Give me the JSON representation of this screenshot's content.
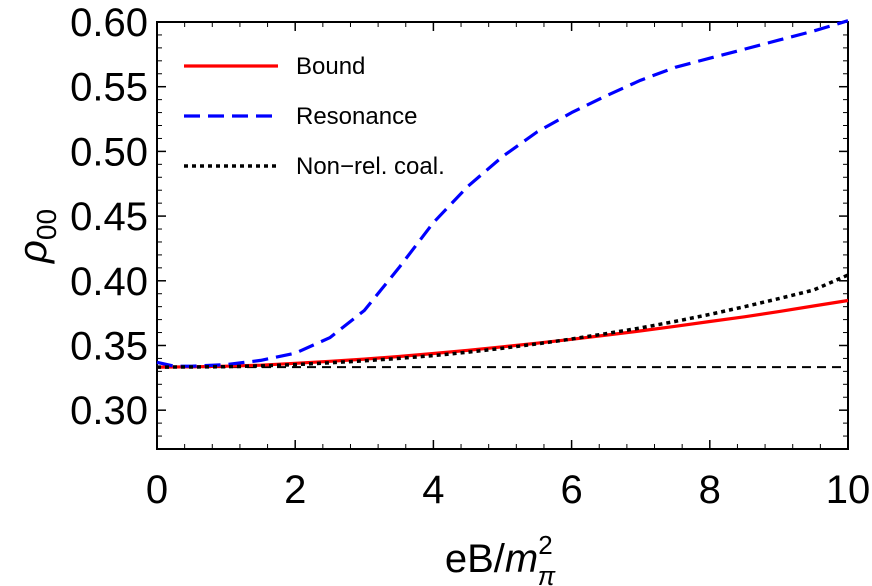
{
  "chart_data": {
    "type": "line",
    "title": "",
    "xlabel": {
      "base": "eB/",
      "var": "m",
      "sup": "2",
      "sub": "π"
    },
    "ylabel": {
      "var": "ρ",
      "sub": "00"
    },
    "xlim": [
      0,
      10
    ],
    "ylim": [
      0.27,
      0.6
    ],
    "x_ticks": [
      0,
      2,
      4,
      6,
      8,
      10
    ],
    "x_tick_labels": [
      "0",
      "2",
      "4",
      "6",
      "8",
      "10"
    ],
    "y_ticks": [
      0.3,
      0.35,
      0.4,
      0.45,
      0.5,
      0.55,
      0.6
    ],
    "y_tick_labels": [
      "0.30",
      "0.35",
      "0.40",
      "0.45",
      "0.50",
      "0.55",
      "0.60"
    ],
    "grid": false,
    "legend_position": "top-left",
    "reference_line": {
      "y": 0.3333,
      "color": "#000000",
      "style": "dashed"
    },
    "series": [
      {
        "name": "Bound",
        "color": "#ff0000",
        "style": "solid",
        "x": [
          0,
          0.5,
          1,
          1.5,
          2,
          2.5,
          3,
          3.5,
          4,
          4.5,
          5,
          5.5,
          6,
          6.5,
          7,
          7.5,
          8,
          8.5,
          9,
          9.5,
          10
        ],
        "y": [
          0.3333,
          0.3335,
          0.334,
          0.3348,
          0.3362,
          0.3378,
          0.3395,
          0.3415,
          0.3438,
          0.3463,
          0.349,
          0.3518,
          0.3548,
          0.358,
          0.3613,
          0.3648,
          0.3685,
          0.3722,
          0.3762,
          0.3805,
          0.3848
        ]
      },
      {
        "name": "Resonance",
        "color": "#0000ff",
        "style": "dashed",
        "x": [
          0,
          0.25,
          0.5,
          1,
          1.5,
          2,
          2.5,
          3,
          3.5,
          4,
          4.5,
          5,
          5.5,
          6,
          6.5,
          7,
          7.5,
          8,
          8.5,
          9,
          9.5,
          10
        ],
        "y": [
          0.337,
          0.334,
          0.334,
          0.3352,
          0.3385,
          0.344,
          0.356,
          0.377,
          0.41,
          0.445,
          0.473,
          0.496,
          0.515,
          0.53,
          0.543,
          0.555,
          0.565,
          0.572,
          0.579,
          0.586,
          0.593,
          0.601
        ]
      },
      {
        "name": "Non−rel. coal.",
        "color": "#000000",
        "style": "dotted",
        "x": [
          0,
          0.5,
          1,
          1.5,
          2,
          2.5,
          3,
          3.5,
          4,
          4.5,
          5,
          5.5,
          6,
          6.5,
          7,
          7.5,
          8,
          8.5,
          9,
          9.5,
          10
        ],
        "y": [
          0.3333,
          0.3334,
          0.3336,
          0.3342,
          0.3352,
          0.3366,
          0.3382,
          0.34,
          0.3422,
          0.3448,
          0.3478,
          0.3512,
          0.355,
          0.3592,
          0.3636,
          0.3686,
          0.374,
          0.38,
          0.3862,
          0.3928,
          0.4045
        ]
      }
    ]
  }
}
